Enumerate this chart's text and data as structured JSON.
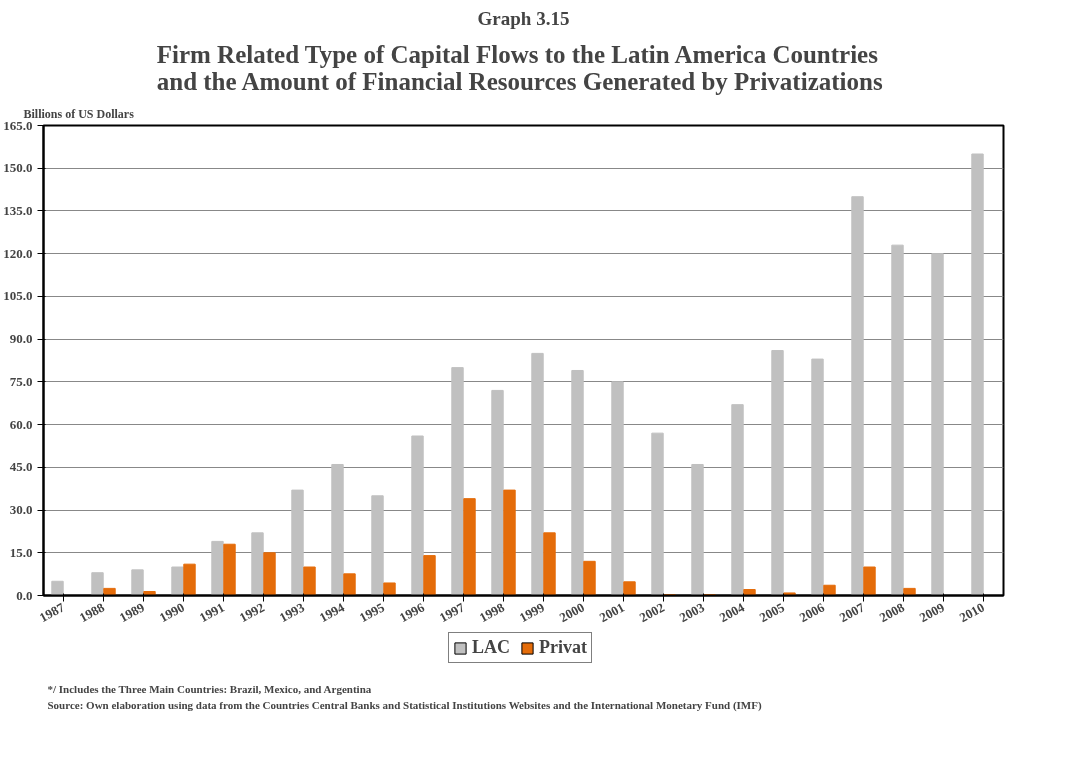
{
  "chart_data": {
    "type": "bar",
    "title": "Graph 3.15",
    "subtitle": "Firm Related Type of Capital Flows to the Latin America Countries\nand the Amount of  Financial Resources Generated by Privatizations",
    "ylabel": "Billions of US Dollars",
    "categories": [
      "1987",
      "1988",
      "1989",
      "1990",
      "1991",
      "1992",
      "1993",
      "1994",
      "1995",
      "1996",
      "1997",
      "1998",
      "1999",
      "2000",
      "2001",
      "2002",
      "2003",
      "2004",
      "2005",
      "2006",
      "2007",
      "2008",
      "2009",
      "2010"
    ],
    "series": [
      {
        "name": "LAC",
        "color": "#c0c0c0",
        "values": [
          5,
          8,
          9,
          10,
          19,
          22,
          37,
          46,
          35,
          56,
          80,
          72,
          85,
          79,
          75,
          57,
          46,
          67,
          86,
          83,
          140,
          123,
          120,
          155
        ]
      },
      {
        "name": "Privat",
        "color": "#e46c0a",
        "values": [
          null,
          2.5,
          1.4,
          11,
          18,
          15,
          10,
          7.6,
          4.4,
          14,
          34,
          37,
          22,
          12,
          4.8,
          0.3,
          0.3,
          2.1,
          0.9,
          3.6,
          10,
          2.5,
          null,
          null
        ]
      }
    ],
    "ylim": [
      0,
      165
    ],
    "yticks": [
      {
        "value": 0,
        "label": "0.0"
      },
      {
        "value": 15,
        "label": "15.0"
      },
      {
        "value": 30,
        "label": "30.0"
      },
      {
        "value": 45,
        "label": "45.0"
      },
      {
        "value": 60,
        "label": "60.0"
      },
      {
        "value": 75,
        "label": "75.0"
      },
      {
        "value": 90,
        "label": "90.0"
      },
      {
        "value": 105,
        "label": "105.0"
      },
      {
        "value": 120,
        "label": "120.0"
      },
      {
        "value": 135,
        "label": "135.0"
      },
      {
        "value": 150,
        "label": "150.0"
      },
      {
        "value": 165,
        "label": "165.0"
      }
    ],
    "grid": "y",
    "legend": "bottom",
    "annotations": [
      "*/ Includes the Three Main Countries: Brazil, Mexico, and Argentina",
      "Source: Own elaboration using data from the Countries Central Banks and Statistical Institutions Websites and the International Monetary Fund (IMF)"
    ]
  }
}
